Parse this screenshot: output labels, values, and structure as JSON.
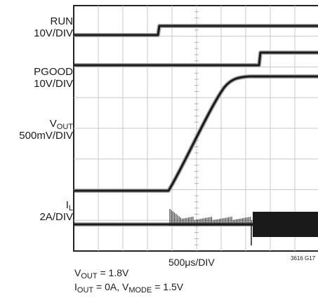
{
  "chart_data": {
    "type": "line",
    "title": "",
    "xlabel": "500μs/DIV",
    "figure_id": "3616 G17",
    "grid": true,
    "x_divisions": 10,
    "y_divisions": 8,
    "channels": [
      {
        "name_main": "RUN",
        "name_sub": "",
        "scale": "10V/DIV"
      },
      {
        "name_main": "PGOOD",
        "name_sub": "",
        "scale": "10V/DIV"
      },
      {
        "name_main": "V",
        "name_sub": "OUT",
        "scale": "500mV/DIV"
      },
      {
        "name_main": "I",
        "name_sub": "L",
        "scale": "2A/DIV"
      }
    ]
  },
  "notes": {
    "line1": {
      "a": "V",
      "a_sub": "OUT",
      "b": " = 1.8V"
    },
    "line2": {
      "a": "I",
      "a_sub": "OUT",
      "b": " = 0A, V",
      "b_sub": "MODE",
      "c": " = 1.5V"
    }
  }
}
